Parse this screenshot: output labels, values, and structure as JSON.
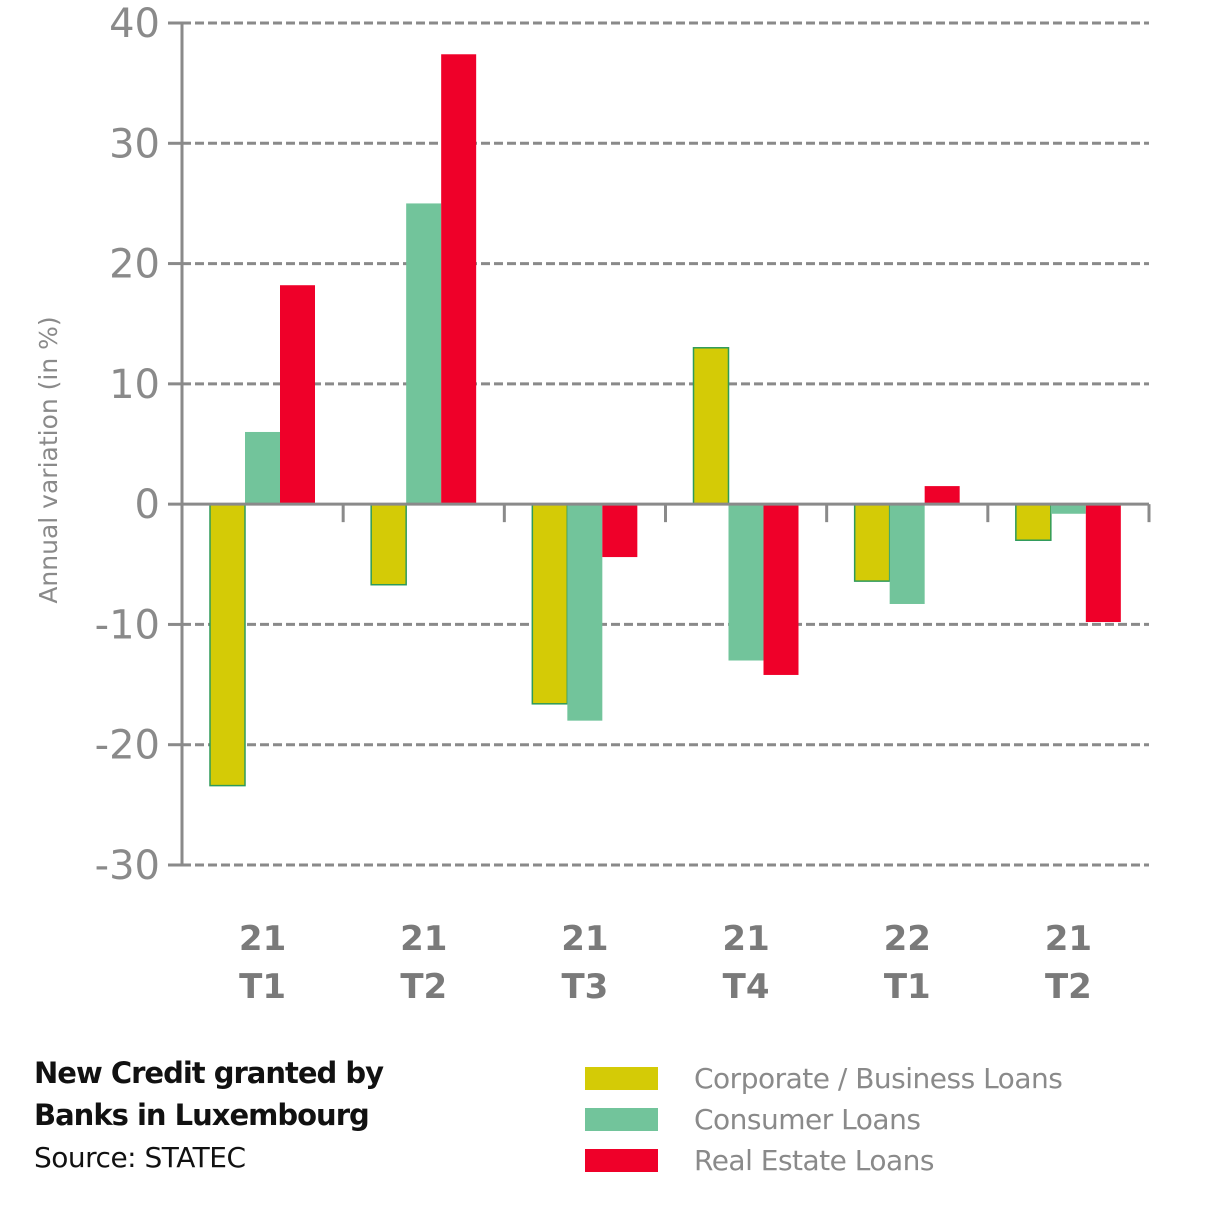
{
  "chart_data": {
    "type": "bar",
    "title": "New Credit granted by Banks in Luxembourg",
    "title_lines": [
      "New Credit granted by",
      "Banks in Luxembourg"
    ],
    "source": "Source: STATEC",
    "xlabel": "",
    "ylabel": "Annual variation (in %)",
    "ylim": [
      -30,
      40
    ],
    "yticks": [
      40,
      30,
      20,
      10,
      0,
      -10,
      -20,
      -30
    ],
    "grid": true,
    "legend_position": "bottom-right",
    "categories": [
      {
        "year": "21",
        "quarter": "T1"
      },
      {
        "year": "21",
        "quarter": "T2"
      },
      {
        "year": "21",
        "quarter": "T3"
      },
      {
        "year": "21",
        "quarter": "T4"
      },
      {
        "year": "22",
        "quarter": "T1"
      },
      {
        "year": "21",
        "quarter": "T2"
      }
    ],
    "series": [
      {
        "name": "Corporate / Business Loans",
        "color": "#d4cb06",
        "values": [
          -23.4,
          -6.7,
          -16.6,
          13.0,
          -6.4,
          -3.0
        ]
      },
      {
        "name": "Consumer Loans",
        "color": "#72c49b",
        "values": [
          6.0,
          25.0,
          -18.0,
          -13.0,
          -8.3,
          -0.8
        ]
      },
      {
        "name": "Real Estate Loans",
        "color": "#ef0029",
        "values": [
          18.2,
          37.4,
          -4.4,
          -14.2,
          1.5,
          -9.8
        ]
      }
    ]
  }
}
